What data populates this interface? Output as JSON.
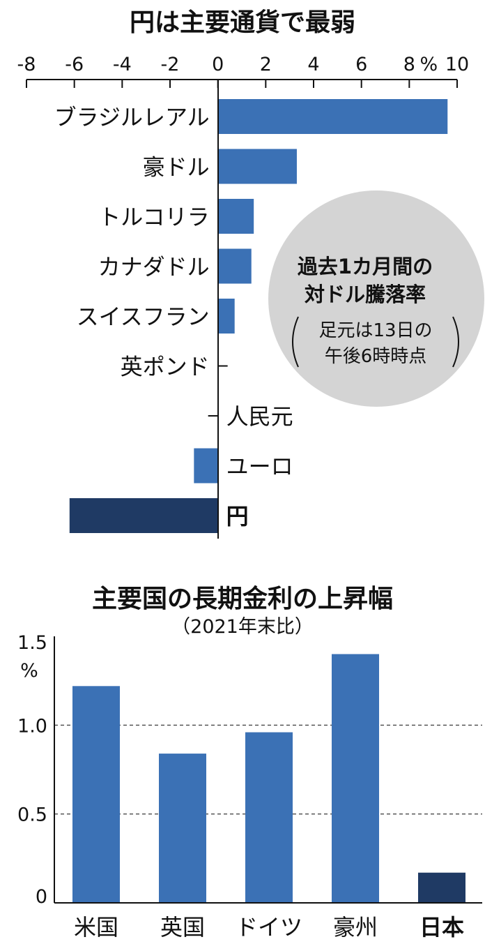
{
  "chart_data": [
    {
      "type": "bar",
      "orientation": "horizontal",
      "title": "円は主要通貨で最弱",
      "x_ticks": [
        "-8",
        "-6",
        "-4",
        "-2",
        "0",
        "2",
        "4",
        "6",
        "8",
        "10"
      ],
      "x_tick_values": [
        -8,
        -6,
        -4,
        -2,
        0,
        2,
        4,
        6,
        8,
        10
      ],
      "unit": "%",
      "xlim": [
        -8,
        10
      ],
      "categories": [
        "ブラジルレアル",
        "豪ドル",
        "トルコリラ",
        "カナダドル",
        "スイスフラン",
        "英ポンド",
        "人民元",
        "ユーロ",
        "円"
      ],
      "values": [
        9.6,
        3.3,
        1.5,
        1.4,
        0.7,
        0.05,
        -0.05,
        -1.0,
        -6.2
      ],
      "highlight": "円",
      "annotation": {
        "line1": "過去1カ月間の",
        "line2": "対ドル騰落率",
        "line3": "足元は13日の",
        "line4": "午後6時時点"
      }
    },
    {
      "type": "bar",
      "title": "主要国の長期金利の上昇幅",
      "subtitle": "（2021年末比）",
      "y_ticks": [
        "1.5",
        "1.0",
        "0.5",
        "0"
      ],
      "y_tick_values": [
        1.5,
        1.0,
        0.5,
        0
      ],
      "unit": "%",
      "ylim": [
        0,
        1.5
      ],
      "gridlines": [
        1.0,
        0.5
      ],
      "categories": [
        "米国",
        "英国",
        "ドイツ",
        "豪州",
        "日本"
      ],
      "values": [
        1.22,
        0.84,
        0.96,
        1.4,
        0.17
      ],
      "highlight": "日本"
    }
  ],
  "colors": {
    "bar": "#3b71b5",
    "highlight": "#1f3a64",
    "text": "#111111",
    "axis": "#111111",
    "grid": "#555555",
    "circle": "#d4d4d4"
  }
}
